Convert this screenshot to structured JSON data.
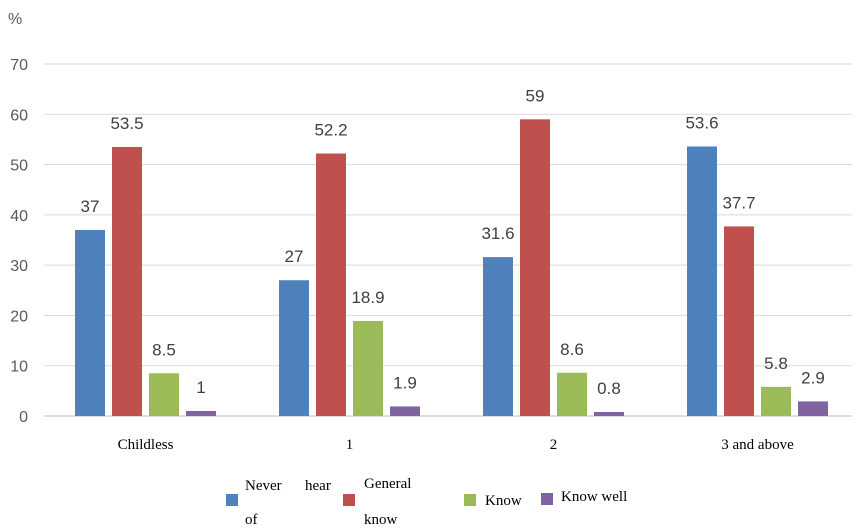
{
  "chart_data": {
    "type": "bar",
    "ylabel": "%",
    "ylim": [
      0,
      70
    ],
    "yticks": [
      0,
      10,
      20,
      30,
      40,
      50,
      60,
      70
    ],
    "grid": true,
    "legend_position": "bottom",
    "categories": [
      "Childless",
      "1",
      "2",
      "3 and above"
    ],
    "series": [
      {
        "name": "Never hear of",
        "color": "#4F81BD",
        "values": [
          37,
          27,
          31.6,
          53.6
        ]
      },
      {
        "name": "General know",
        "color": "#C0504D",
        "values": [
          53.5,
          52.2,
          59,
          37.7
        ]
      },
      {
        "name": "Know",
        "color": "#9BBB59",
        "values": [
          8.5,
          18.9,
          8.6,
          5.8
        ]
      },
      {
        "name": "Know well",
        "color": "#8064A2",
        "values": [
          1,
          1.9,
          0.8,
          2.9
        ]
      }
    ],
    "data_labels": [
      [
        "37",
        "27",
        "31.6",
        "53.6"
      ],
      [
        "53.5",
        "52.2",
        "59",
        "37.7"
      ],
      [
        "8.5",
        "18.9",
        "8.6",
        "5.8"
      ],
      [
        "1",
        "1.9",
        "0.8",
        "2.9"
      ]
    ]
  }
}
